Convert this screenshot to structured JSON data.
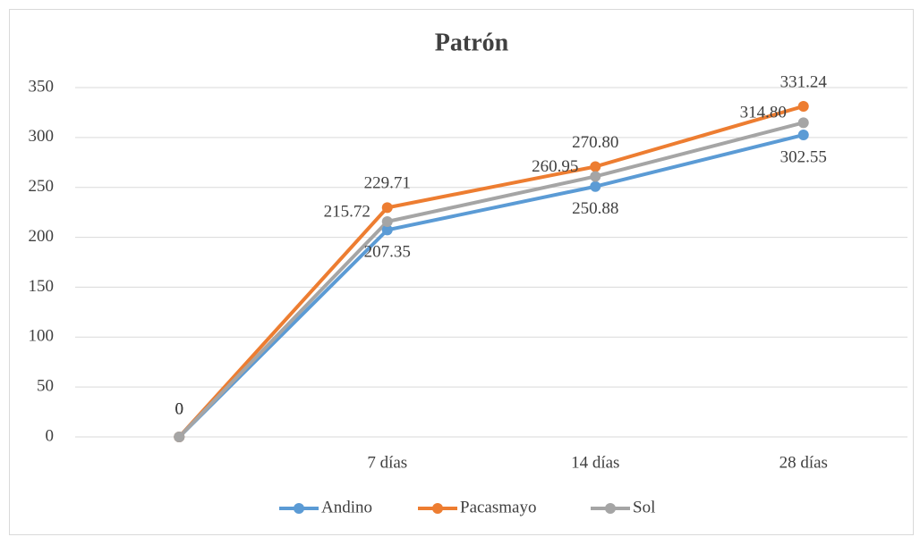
{
  "chart_data": {
    "type": "line",
    "title": "Patrón",
    "categories": [
      null,
      "7 días",
      "14 días",
      "28 días"
    ],
    "series": [
      {
        "name": "Andino",
        "color": "#5b9bd5",
        "values": [
          0,
          207.35,
          250.88,
          302.55
        ],
        "value_labels": [
          "0",
          "207.35",
          "250.88",
          "302.55"
        ]
      },
      {
        "name": "Pacasmayo",
        "color": "#ed7d31",
        "values": [
          0,
          229.71,
          270.8,
          331.24
        ],
        "value_labels": [
          "0",
          "229.71",
          "270.80",
          "331.24"
        ]
      },
      {
        "name": "Sol",
        "color": "#a5a5a5",
        "values": [
          0,
          215.72,
          260.95,
          314.8
        ],
        "value_labels": [
          "0",
          "215.72",
          "260.95",
          "314.80"
        ]
      }
    ],
    "ylim": [
      0,
      350
    ],
    "yticks": [
      0,
      50,
      100,
      150,
      200,
      250,
      300,
      350
    ],
    "grid": true,
    "legend": "bottom"
  }
}
